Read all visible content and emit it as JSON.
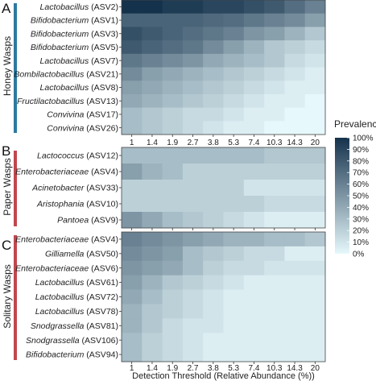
{
  "chart_data": {
    "type": "heatmap",
    "xlabel": "Detection Threshold (Relative Abundance (%))",
    "x_ticks": [
      "1",
      "1.4",
      "1.9",
      "2.7",
      "3.8",
      "5.3",
      "7.4",
      "10.3",
      "14.3",
      "20"
    ],
    "legend": {
      "title": "Prevalence",
      "ticks": [
        "100%",
        "90%",
        "80%",
        "70%",
        "60%",
        "50%",
        "40%",
        "30%",
        "20%",
        "10%",
        "0%"
      ],
      "color_low": "#e6f8fb",
      "color_high": "#15324c"
    },
    "panels": [
      {
        "letter": "A",
        "group": "Honey Wasps",
        "group_color": "#2c7aa0",
        "rows": [
          {
            "genus": "Lactobacillus",
            "asv": "(ASV2)",
            "values": [
              100,
              100,
              95,
              95,
              90,
              90,
              85,
              80,
              70,
              60
            ]
          },
          {
            "genus": "Bifidobacterium",
            "asv": "(ASV1)",
            "values": [
              75,
              75,
              75,
              75,
              72,
              70,
              65,
              60,
              55,
              45
            ]
          },
          {
            "genus": "Bifidobacterium",
            "asv": "(ASV3)",
            "values": [
              85,
              80,
              75,
              70,
              65,
              60,
              50,
              45,
              35,
              25
            ]
          },
          {
            "genus": "Bifidobacterium",
            "asv": "(ASV5)",
            "values": [
              80,
              75,
              70,
              65,
              55,
              45,
              35,
              25,
              20,
              15
            ]
          },
          {
            "genus": "Lactobacillus",
            "asv": "(ASV7)",
            "values": [
              65,
              60,
              55,
              50,
              40,
              35,
              30,
              25,
              15,
              10
            ]
          },
          {
            "genus": "Bombilactobacillus",
            "asv": "(ASV21)",
            "values": [
              55,
              45,
              40,
              35,
              30,
              25,
              20,
              15,
              10,
              5
            ]
          },
          {
            "genus": "Lactobacillus",
            "asv": "(ASV8)",
            "values": [
              45,
              40,
              35,
              30,
              25,
              20,
              15,
              10,
              5,
              5
            ]
          },
          {
            "genus": "Fructilactobacillus",
            "asv": "(ASV13)",
            "values": [
              40,
              35,
              30,
              25,
              20,
              15,
              10,
              5,
              5,
              0
            ]
          },
          {
            "genus": "Convivina",
            "asv": "(ASV17)",
            "values": [
              30,
              25,
              20,
              15,
              15,
              10,
              5,
              5,
              0,
              0
            ]
          },
          {
            "genus": "Convivina",
            "asv": "(ASV26)",
            "values": [
              30,
              25,
              20,
              15,
              10,
              5,
              5,
              0,
              0,
              0
            ]
          }
        ]
      },
      {
        "letter": "B",
        "group": "Paper Wasps",
        "group_color": "#c0474f",
        "rows": [
          {
            "genus": "Lactococcus",
            "asv": "(ASV12)",
            "values": [
              30,
              30,
              30,
              30,
              30,
              30,
              30,
              25,
              25,
              25
            ]
          },
          {
            "genus": "Enterobacteriaceae",
            "asv": "(ASV4)",
            "values": [
              45,
              35,
              30,
              20,
              20,
              20,
              20,
              20,
              20,
              20
            ]
          },
          {
            "genus": "Acinetobacter",
            "asv": "(ASV33)",
            "values": [
              20,
              20,
              20,
              20,
              20,
              20,
              10,
              10,
              10,
              10
            ]
          },
          {
            "genus": "Aristophania",
            "asv": "(ASV10)",
            "values": [
              20,
              20,
              20,
              20,
              20,
              20,
              20,
              15,
              15,
              15
            ]
          },
          {
            "genus": "Pantoea",
            "asv": "(ASV9)",
            "values": [
              50,
              40,
              30,
              25,
              20,
              15,
              10,
              5,
              5,
              5
            ]
          }
        ]
      },
      {
        "letter": "C",
        "group": "Solitary Wasps",
        "group_color": "#c0474f",
        "rows": [
          {
            "genus": "Enterobacteriaceae",
            "asv": "(ASV4)",
            "values": [
              60,
              55,
              50,
              45,
              40,
              35,
              35,
              30,
              30,
              25
            ]
          },
          {
            "genus": "Gilliamella",
            "asv": "(ASV50)",
            "values": [
              55,
              50,
              45,
              30,
              25,
              20,
              15,
              15,
              5,
              5
            ]
          },
          {
            "genus": "Enterobacteriaceae",
            "asv": "(ASV6)",
            "values": [
              50,
              45,
              40,
              30,
              20,
              15,
              15,
              10,
              10,
              10
            ]
          },
          {
            "genus": "Lactobacillus",
            "asv": "(ASV61)",
            "values": [
              45,
              35,
              25,
              20,
              15,
              10,
              5,
              5,
              5,
              5
            ]
          },
          {
            "genus": "Lactobacillus",
            "asv": "(ASV72)",
            "values": [
              40,
              30,
              20,
              15,
              10,
              5,
              5,
              5,
              5,
              5
            ]
          },
          {
            "genus": "Lactobacillus",
            "asv": "(ASV78)",
            "values": [
              35,
              25,
              20,
              15,
              10,
              5,
              5,
              5,
              5,
              5
            ]
          },
          {
            "genus": "Snodgrassella",
            "asv": "(ASV81)",
            "values": [
              35,
              25,
              15,
              10,
              10,
              5,
              5,
              5,
              5,
              5
            ]
          },
          {
            "genus": "Snodgrassella",
            "asv": "(ASV106)",
            "values": [
              30,
              20,
              15,
              10,
              5,
              5,
              5,
              5,
              5,
              5
            ]
          },
          {
            "genus": "Bifidobacterium",
            "asv": "(ASV94)",
            "values": [
              30,
              20,
              15,
              10,
              5,
              5,
              5,
              5,
              5,
              5
            ]
          }
        ]
      }
    ]
  }
}
